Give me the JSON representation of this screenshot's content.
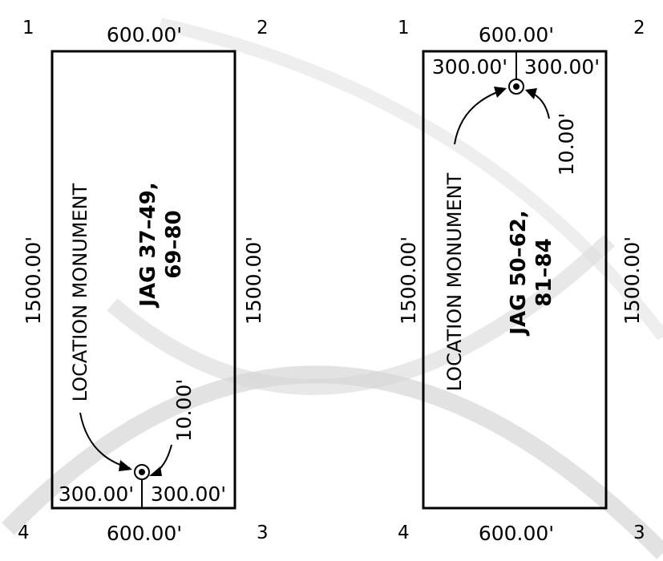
{
  "claims": [
    {
      "corners": [
        "1",
        "2",
        "3",
        "4"
      ],
      "top_dim": "600.00'",
      "bottom_dim": "600.00'",
      "left_dim": "1500.00'",
      "right_dim": "1500.00'",
      "offset_left": "300.00'",
      "offset_right": "300.00'",
      "monument_offset": "10.00'",
      "monument_label": "LOCATION MONUMENT",
      "jag_line1": "JAG 37–49,",
      "jag_line2": "69–80"
    },
    {
      "corners": [
        "1",
        "2",
        "3",
        "4"
      ],
      "top_dim": "600.00'",
      "bottom_dim": "600.00'",
      "left_dim": "1500.00'",
      "right_dim": "1500.00'",
      "offset_left": "300.00'",
      "offset_right": "300.00'",
      "monument_offset": "10.00'",
      "monument_label": "LOCATION MONUMENT",
      "jag_line1": "JAG 50–62,",
      "jag_line2": "81–84"
    }
  ],
  "watermark_color": "#c8c8c8"
}
